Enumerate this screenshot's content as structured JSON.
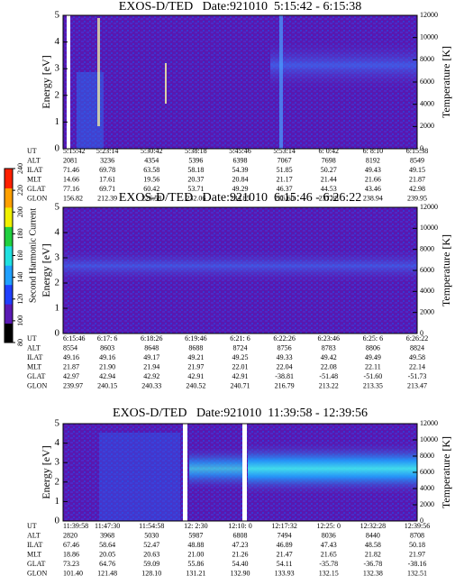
{
  "colorbar": {
    "label": "Second Harmonic Current",
    "lim": [
      80,
      240
    ],
    "ticks": [
      80,
      100,
      120,
      140,
      160,
      180,
      200,
      220,
      240
    ],
    "colors": [
      "#000000",
      "#5a1ab4",
      "#2040ff",
      "#20a0ff",
      "#20e0e0",
      "#20d040",
      "#f0f000",
      "#ffa000",
      "#ff2000"
    ]
  },
  "panels": [
    {
      "title": "EXOS-D/TED   Date:921010  5:15:42 - 6:15:38",
      "ylabel": "Energy [eV]",
      "y2label": "Temperature [K]",
      "ylim": [
        0,
        5
      ],
      "yticks": [
        0,
        1,
        2,
        3,
        4,
        5
      ],
      "y2lim": [
        0,
        12000
      ],
      "y2ticks": [
        0,
        2000,
        4000,
        6000,
        8000,
        10000,
        12000
      ],
      "table": [
        {
          "label": "UT",
          "values": [
            "5:15:42",
            "5:23:14",
            "5:30:42",
            "5:38:18",
            "5:45:46",
            "5:53:14",
            "6: 0:42",
            "6: 8:10",
            "6:15:38"
          ]
        },
        {
          "label": "ALT",
          "values": [
            "2081",
            "3236",
            "4354",
            "5396",
            "6398",
            "7067",
            "7698",
            "8192",
            "8549"
          ]
        },
        {
          "label": "ILAT",
          "values": [
            "71.46",
            "69.78",
            "63.58",
            "58.18",
            "54.39",
            "51.85",
            "50.27",
            "49.43",
            "49.15"
          ]
        },
        {
          "label": "MLT",
          "values": [
            "14.66",
            "17.61",
            "19.56",
            "20.37",
            "20.84",
            "21.17",
            "21.44",
            "21.66",
            "21.87"
          ]
        },
        {
          "label": "GLAT",
          "values": [
            "77.16",
            "69.71",
            "60.42",
            "53.71",
            "49.29",
            "46.37",
            "44.53",
            "43.46",
            "42.98"
          ]
        },
        {
          "label": "GLON",
          "values": [
            "156.82",
            "212.39",
            "226.58",
            "232.06",
            "234.85",
            "236.60",
            "237.88",
            "238.94",
            "239.95"
          ]
        }
      ]
    },
    {
      "title": "EXOS-D/TED   Date:921010  6:15:46 - 6:26:22",
      "ylabel": "Energy [eV]",
      "y2label": "Temperature [K]",
      "ylim": [
        0,
        5
      ],
      "yticks": [
        0,
        1,
        2,
        3,
        4,
        5
      ],
      "y2lim": [
        0,
        12000
      ],
      "y2ticks": [
        0,
        2000,
        4000,
        6000,
        8000,
        10000,
        12000
      ],
      "table": [
        {
          "label": "UT",
          "values": [
            "6:15:46",
            "6:17: 6",
            "6:18:26",
            "6:19:46",
            "6:21: 6",
            "6:22:26",
            "6:23:46",
            "6:25: 6",
            "6:26:22"
          ]
        },
        {
          "label": "ALT",
          "values": [
            "8554",
            "8603",
            "8648",
            "8688",
            "8724",
            "8756",
            "8783",
            "8806",
            "8824"
          ]
        },
        {
          "label": "ILAT",
          "values": [
            "49.16",
            "49.16",
            "49.17",
            "49.21",
            "49.25",
            "49.33",
            "49.42",
            "49.49",
            "49.58"
          ]
        },
        {
          "label": "MLT",
          "values": [
            "21.87",
            "21.90",
            "21.94",
            "21.97",
            "22.01",
            "22.04",
            "22.08",
            "22.11",
            "22.14"
          ]
        },
        {
          "label": "GLAT",
          "values": [
            "42.97",
            "42.94",
            "42.92",
            "42.91",
            "42.91",
            "-38.81",
            "-51.48",
            "-51.60",
            "-51.73"
          ]
        },
        {
          "label": "GLON",
          "values": [
            "239.97",
            "240.15",
            "240.33",
            "240.52",
            "240.71",
            "216.79",
            "213.22",
            "213.35",
            "213.47"
          ]
        }
      ]
    },
    {
      "title": "EXOS-D/TED   Date:921010  11:39:58 - 12:39:56",
      "ylabel": "Energy [eV]",
      "y2label": "Temperature [K]",
      "ylim": [
        0,
        5
      ],
      "yticks": [
        0,
        1,
        2,
        3,
        4,
        5
      ],
      "y2lim": [
        0,
        12000
      ],
      "y2ticks": [
        0,
        2000,
        4000,
        6000,
        8000,
        10000,
        12000
      ],
      "table": [
        {
          "label": "UT",
          "values": [
            "11:39:58",
            "11:47:30",
            "11:54:58",
            "12: 2:30",
            "12:10: 0",
            "12:17:32",
            "12:25: 0",
            "12:32:28",
            "12:39:56"
          ]
        },
        {
          "label": "ALT",
          "values": [
            "2820",
            "3968",
            "5030",
            "5987",
            "6808",
            "7494",
            "8036",
            "8440",
            "8708"
          ]
        },
        {
          "label": "ILAT",
          "values": [
            "67.46",
            "58.64",
            "52.47",
            "48.88",
            "47.23",
            "46.89",
            "47.43",
            "48.58",
            "50.18"
          ]
        },
        {
          "label": "MLT",
          "values": [
            "18.86",
            "20.05",
            "20.63",
            "21.00",
            "21.26",
            "21.47",
            "21.65",
            "21.82",
            "21.97"
          ]
        },
        {
          "label": "GLAT",
          "values": [
            "73.23",
            "64.76",
            "59.09",
            "55.86",
            "54.40",
            "54.11",
            "-35.78",
            "-36.78",
            "-38.16"
          ]
        },
        {
          "label": "GLON",
          "values": [
            "101.40",
            "121.48",
            "128.10",
            "131.21",
            "132.90",
            "133.93",
            "132.15",
            "132.38",
            "132.51"
          ]
        }
      ]
    }
  ]
}
